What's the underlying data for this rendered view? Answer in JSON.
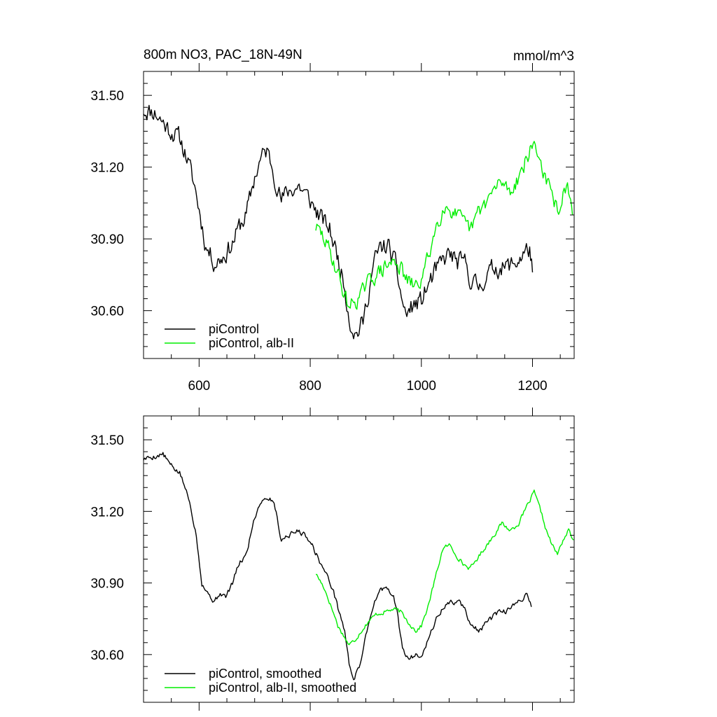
{
  "figure": {
    "title_left": "800m NO3, PAC_18N-49N",
    "title_right": "mmol/m^3"
  },
  "colors": {
    "picontrol": "#000000",
    "alb_ii": "#00ee00",
    "background": "#ffffff"
  },
  "chart_data": [
    {
      "type": "line",
      "panel": "top",
      "xlim": [
        500,
        1275
      ],
      "ylim": [
        30.4,
        31.6
      ],
      "yticks": [
        30.6,
        30.9,
        31.2,
        31.5
      ],
      "ytick_labels": [
        "30.60",
        "30.90",
        "31.20",
        "31.50"
      ],
      "xticks": [
        600,
        800,
        1000,
        1200
      ],
      "xtick_labels": [
        "600",
        "800",
        "1000",
        "1200"
      ],
      "legend_position": "bottom-left",
      "grid": false,
      "series": [
        {
          "name": "piControl",
          "color_key": "picontrol",
          "noise": 0.035,
          "seed": 11,
          "anchors": [
            [
              500,
              31.44
            ],
            [
              520,
              31.43
            ],
            [
              545,
              31.36
            ],
            [
              565,
              31.32
            ],
            [
              578,
              31.24
            ],
            [
              592,
              31.12
            ],
            [
              602,
              31.0
            ],
            [
              612,
              30.87
            ],
            [
              628,
              30.8
            ],
            [
              645,
              30.83
            ],
            [
              660,
              30.88
            ],
            [
              672,
              30.95
            ],
            [
              685,
              31.0
            ],
            [
              700,
              31.16
            ],
            [
              712,
              31.24
            ],
            [
              722,
              31.27
            ],
            [
              732,
              31.2
            ],
            [
              748,
              31.06
            ],
            [
              760,
              31.1
            ],
            [
              780,
              31.12
            ],
            [
              800,
              31.06
            ],
            [
              815,
              31.0
            ],
            [
              835,
              30.94
            ],
            [
              850,
              30.82
            ],
            [
              862,
              30.7
            ],
            [
              872,
              30.55
            ],
            [
              882,
              30.5
            ],
            [
              895,
              30.55
            ],
            [
              905,
              30.68
            ],
            [
              915,
              30.8
            ],
            [
              925,
              30.86
            ],
            [
              940,
              30.87
            ],
            [
              955,
              30.78
            ],
            [
              962,
              30.68
            ],
            [
              972,
              30.58
            ],
            [
              985,
              30.62
            ],
            [
              1000,
              30.64
            ],
            [
              1015,
              30.72
            ],
            [
              1030,
              30.78
            ],
            [
              1050,
              30.84
            ],
            [
              1065,
              30.8
            ],
            [
              1080,
              30.8
            ],
            [
              1090,
              30.72
            ],
            [
              1105,
              30.7
            ],
            [
              1115,
              30.74
            ],
            [
              1130,
              30.78
            ],
            [
              1150,
              30.78
            ],
            [
              1170,
              30.8
            ],
            [
              1185,
              30.84
            ],
            [
              1195,
              30.86
            ],
            [
              1200,
              30.76
            ]
          ]
        },
        {
          "name": "piControl, alb-II",
          "color_key": "alb_ii",
          "noise": 0.03,
          "seed": 29,
          "anchors": [
            [
              810,
              30.95
            ],
            [
              825,
              30.9
            ],
            [
              840,
              30.82
            ],
            [
              852,
              30.74
            ],
            [
              862,
              30.66
            ],
            [
              870,
              30.62
            ],
            [
              880,
              30.64
            ],
            [
              890,
              30.66
            ],
            [
              900,
              30.7
            ],
            [
              912,
              30.74
            ],
            [
              925,
              30.76
            ],
            [
              940,
              30.79
            ],
            [
              955,
              30.81
            ],
            [
              962,
              30.78
            ],
            [
              975,
              30.72
            ],
            [
              990,
              30.7
            ],
            [
              1000,
              30.73
            ],
            [
              1012,
              30.82
            ],
            [
              1025,
              30.94
            ],
            [
              1040,
              31.04
            ],
            [
              1055,
              31.02
            ],
            [
              1070,
              30.98
            ],
            [
              1080,
              30.95
            ],
            [
              1090,
              30.94
            ],
            [
              1100,
              31.0
            ],
            [
              1115,
              31.05
            ],
            [
              1130,
              31.1
            ],
            [
              1145,
              31.14
            ],
            [
              1160,
              31.1
            ],
            [
              1175,
              31.16
            ],
            [
              1190,
              31.24
            ],
            [
              1203,
              31.3
            ],
            [
              1215,
              31.22
            ],
            [
              1225,
              31.14
            ],
            [
              1235,
              31.08
            ],
            [
              1245,
              31.02
            ],
            [
              1255,
              31.08
            ],
            [
              1265,
              31.1
            ],
            [
              1272,
              31.0
            ]
          ]
        }
      ]
    },
    {
      "type": "line",
      "panel": "bottom",
      "xlim": [
        500,
        1275
      ],
      "ylim": [
        30.4,
        31.6
      ],
      "yticks": [
        30.6,
        30.9,
        31.2,
        31.5
      ],
      "ytick_labels": [
        "30.60",
        "30.90",
        "31.20",
        "31.50"
      ],
      "xticks": [
        600,
        800,
        1000,
        1200
      ],
      "xtick_labels": [],
      "legend_position": "bottom-left",
      "grid": false,
      "series": [
        {
          "name": "piControl, smoothed",
          "color_key": "picontrol",
          "noise": 0.01,
          "seed": 5,
          "anchors": [
            [
              500,
              31.42
            ],
            [
              520,
              31.43
            ],
            [
              535,
              31.44
            ],
            [
              550,
              31.39
            ],
            [
              565,
              31.36
            ],
            [
              575,
              31.3
            ],
            [
              585,
              31.22
            ],
            [
              595,
              31.1
            ],
            [
              605,
              30.9
            ],
            [
              615,
              30.86
            ],
            [
              628,
              30.82
            ],
            [
              638,
              30.86
            ],
            [
              648,
              30.84
            ],
            [
              660,
              30.9
            ],
            [
              672,
              30.98
            ],
            [
              685,
              31.02
            ],
            [
              698,
              31.16
            ],
            [
              710,
              31.24
            ],
            [
              722,
              31.26
            ],
            [
              735,
              31.24
            ],
            [
              748,
              31.08
            ],
            [
              760,
              31.1
            ],
            [
              780,
              31.12
            ],
            [
              800,
              31.08
            ],
            [
              815,
              31.0
            ],
            [
              828,
              30.94
            ],
            [
              840,
              30.88
            ],
            [
              852,
              30.78
            ],
            [
              862,
              30.7
            ],
            [
              870,
              30.56
            ],
            [
              878,
              30.5
            ],
            [
              888,
              30.54
            ],
            [
              898,
              30.66
            ],
            [
              910,
              30.78
            ],
            [
              922,
              30.86
            ],
            [
              935,
              30.88
            ],
            [
              950,
              30.84
            ],
            [
              958,
              30.76
            ],
            [
              966,
              30.62
            ],
            [
              978,
              30.58
            ],
            [
              990,
              30.6
            ],
            [
              1000,
              30.6
            ],
            [
              1012,
              30.66
            ],
            [
              1025,
              30.74
            ],
            [
              1040,
              30.8
            ],
            [
              1055,
              30.82
            ],
            [
              1070,
              30.82
            ],
            [
              1080,
              30.78
            ],
            [
              1090,
              30.72
            ],
            [
              1105,
              30.7
            ],
            [
              1120,
              30.74
            ],
            [
              1135,
              30.77
            ],
            [
              1150,
              30.78
            ],
            [
              1165,
              30.8
            ],
            [
              1180,
              30.83
            ],
            [
              1190,
              30.86
            ],
            [
              1198,
              30.8
            ]
          ]
        },
        {
          "name": "piControl, alb-II, smoothed",
          "color_key": "alb_ii",
          "noise": 0.008,
          "seed": 17,
          "anchors": [
            [
              810,
              30.94
            ],
            [
              825,
              30.88
            ],
            [
              838,
              30.8
            ],
            [
              850,
              30.72
            ],
            [
              860,
              30.68
            ],
            [
              870,
              30.64
            ],
            [
              880,
              30.66
            ],
            [
              892,
              30.7
            ],
            [
              905,
              30.74
            ],
            [
              920,
              30.77
            ],
            [
              935,
              30.78
            ],
            [
              950,
              30.79
            ],
            [
              962,
              30.78
            ],
            [
              975,
              30.74
            ],
            [
              990,
              30.7
            ],
            [
              1000,
              30.72
            ],
            [
              1012,
              30.8
            ],
            [
              1025,
              30.92
            ],
            [
              1038,
              31.04
            ],
            [
              1050,
              31.06
            ],
            [
              1062,
              31.02
            ],
            [
              1075,
              30.98
            ],
            [
              1088,
              30.96
            ],
            [
              1100,
              31.0
            ],
            [
              1115,
              31.05
            ],
            [
              1130,
              31.1
            ],
            [
              1145,
              31.15
            ],
            [
              1160,
              31.12
            ],
            [
              1175,
              31.15
            ],
            [
              1190,
              31.22
            ],
            [
              1203,
              31.28
            ],
            [
              1215,
              31.2
            ],
            [
              1225,
              31.12
            ],
            [
              1235,
              31.06
            ],
            [
              1245,
              31.02
            ],
            [
              1255,
              31.08
            ],
            [
              1265,
              31.12
            ],
            [
              1274,
              31.08
            ]
          ]
        }
      ]
    }
  ]
}
